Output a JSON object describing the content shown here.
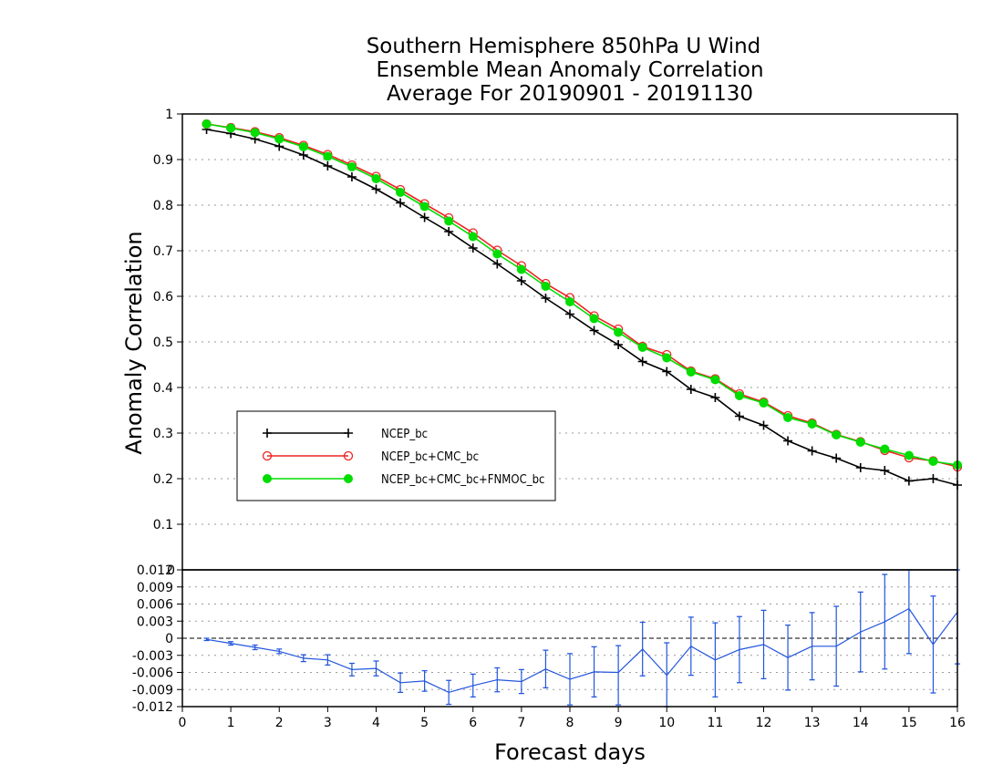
{
  "chart_data": [
    {
      "type": "line",
      "title_lines": [
        "Southern Hemisphere 850hPa U Wind",
        "Ensemble Mean Anomaly Correlation",
        "Average For 20190901 - 20191130"
      ],
      "ylabel": "Anomaly Correlation",
      "ylim": [
        0,
        1
      ],
      "yticks": [
        "0",
        "0.1",
        "0.2",
        "0.3",
        "0.4",
        "0.5",
        "0.6",
        "0.7",
        "0.8",
        "0.9",
        "1"
      ],
      "grid": true,
      "legend_position": "left-middle",
      "x": [
        0.5,
        1,
        1.5,
        2,
        2.5,
        3,
        3.5,
        4,
        4.5,
        5,
        5.5,
        6,
        6.5,
        7,
        7.5,
        8,
        8.5,
        9,
        9.5,
        10,
        10.5,
        11,
        11.5,
        12,
        12.5,
        13,
        13.5,
        14,
        14.5,
        15,
        15.5,
        16
      ],
      "series": [
        {
          "name": "NCEP_bc",
          "color": "#000000",
          "marker": "plus",
          "values": [
            0.966,
            0.957,
            0.945,
            0.929,
            0.91,
            0.886,
            0.862,
            0.835,
            0.805,
            0.773,
            0.742,
            0.706,
            0.671,
            0.634,
            0.596,
            0.561,
            0.525,
            0.494,
            0.457,
            0.435,
            0.396,
            0.378,
            0.337,
            0.317,
            0.283,
            0.261,
            0.245,
            0.224,
            0.218,
            0.195,
            0.2,
            0.186
          ]
        },
        {
          "name": "NCEP_bc+CMC_bc",
          "color": "#ee2222",
          "marker": "open-circle",
          "values": [
            0.978,
            0.97,
            0.961,
            0.948,
            0.931,
            0.911,
            0.888,
            0.863,
            0.834,
            0.803,
            0.772,
            0.739,
            0.701,
            0.667,
            0.628,
            0.597,
            0.557,
            0.528,
            0.49,
            0.472,
            0.436,
            0.419,
            0.386,
            0.368,
            0.338,
            0.322,
            0.297,
            0.281,
            0.262,
            0.246,
            0.239,
            0.226
          ]
        },
        {
          "name": "NCEP_bc+CMC_bc+FNMOC_bc",
          "color": "#00dd00",
          "marker": "filled-circle",
          "values": [
            0.978,
            0.969,
            0.959,
            0.945,
            0.928,
            0.907,
            0.884,
            0.858,
            0.828,
            0.797,
            0.765,
            0.731,
            0.693,
            0.659,
            0.622,
            0.588,
            0.551,
            0.521,
            0.488,
            0.465,
            0.434,
            0.417,
            0.382,
            0.366,
            0.334,
            0.32,
            0.296,
            0.28,
            0.265,
            0.251,
            0.238,
            0.23
          ]
        }
      ]
    },
    {
      "type": "line",
      "xlabel": "Forecast days",
      "xlim": [
        0,
        16
      ],
      "xticks": [
        "0",
        "1",
        "2",
        "3",
        "4",
        "5",
        "6",
        "7",
        "8",
        "9",
        "10",
        "11",
        "12",
        "13",
        "14",
        "15",
        "16"
      ],
      "ylim": [
        -0.012,
        0.012
      ],
      "yticks": [
        "-0.012",
        "-0.009",
        "-0.006",
        "-0.003",
        "0",
        "0.003",
        "0.006",
        "0.009",
        "0.012"
      ],
      "top_tick_label": "0",
      "grid": true,
      "zero_line": "dashed",
      "x": [
        0.5,
        1,
        1.5,
        2,
        2.5,
        3,
        3.5,
        4,
        4.5,
        5,
        5.5,
        6,
        6.5,
        7,
        7.5,
        8,
        8.5,
        9,
        9.5,
        10,
        10.5,
        11,
        11.5,
        12,
        12.5,
        13,
        13.5,
        14,
        14.5,
        15,
        15.5,
        16
      ],
      "series": [
        {
          "color": "#2255dd",
          "marker": "error-bar",
          "values": [
            -0.0002,
            -0.0009,
            -0.0016,
            -0.0023,
            -0.0035,
            -0.0038,
            -0.0055,
            -0.0053,
            -0.0078,
            -0.0075,
            -0.0095,
            -0.0083,
            -0.0073,
            -0.0076,
            -0.0054,
            -0.0072,
            -0.0059,
            -0.006,
            -0.0019,
            -0.0065,
            -0.0014,
            -0.0038,
            -0.002,
            -0.0011,
            -0.0034,
            -0.0014,
            -0.0014,
            0.0011,
            0.0029,
            0.0052,
            -0.0011,
            0.0046
          ],
          "lower": [
            -0.0004,
            -0.0012,
            -0.002,
            -0.0027,
            -0.0041,
            -0.0047,
            -0.0066,
            -0.0066,
            -0.0095,
            -0.0093,
            -0.0116,
            -0.0103,
            -0.0094,
            -0.0097,
            -0.0087,
            -0.0117,
            -0.0103,
            -0.0117,
            -0.0066,
            -0.0122,
            -0.0065,
            -0.0103,
            -0.0078,
            -0.0071,
            -0.0091,
            -0.0073,
            -0.0084,
            -0.0059,
            -0.0054,
            -0.0027,
            -0.0096,
            -0.0045
          ],
          "upper": [
            0,
            -0.0006,
            -0.0012,
            -0.0019,
            -0.0029,
            -0.0029,
            -0.0044,
            -0.004,
            -0.0061,
            -0.0057,
            -0.0074,
            -0.0063,
            -0.0052,
            -0.0055,
            -0.0021,
            -0.0027,
            -0.0015,
            -0.0013,
            0.0028,
            -0.0008,
            0.0037,
            0.0027,
            0.0038,
            0.0049,
            0.0023,
            0.0045,
            0.0056,
            0.0081,
            0.0112,
            0.0131,
            0.0074,
            0.0137
          ]
        }
      ]
    }
  ]
}
